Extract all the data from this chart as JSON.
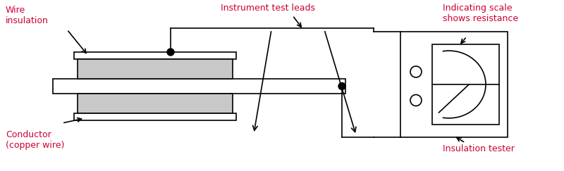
{
  "bg_color": "#ffffff",
  "line_color": "#000000",
  "label_color": "#cc0033",
  "gray_fill": "#c8c8c8",
  "white_fill": "#ffffff",
  "labels": {
    "wire_insulation": "Wire\ninsulation",
    "conductor": "Conductor\n(copper wire)",
    "instrument_leads": "Instrument test leads",
    "indicating_scale": "Indicating scale\nshows resistance",
    "insulation_tester": "Insulation tester"
  },
  "figsize": [
    8.0,
    2.43
  ],
  "dpi": 100
}
